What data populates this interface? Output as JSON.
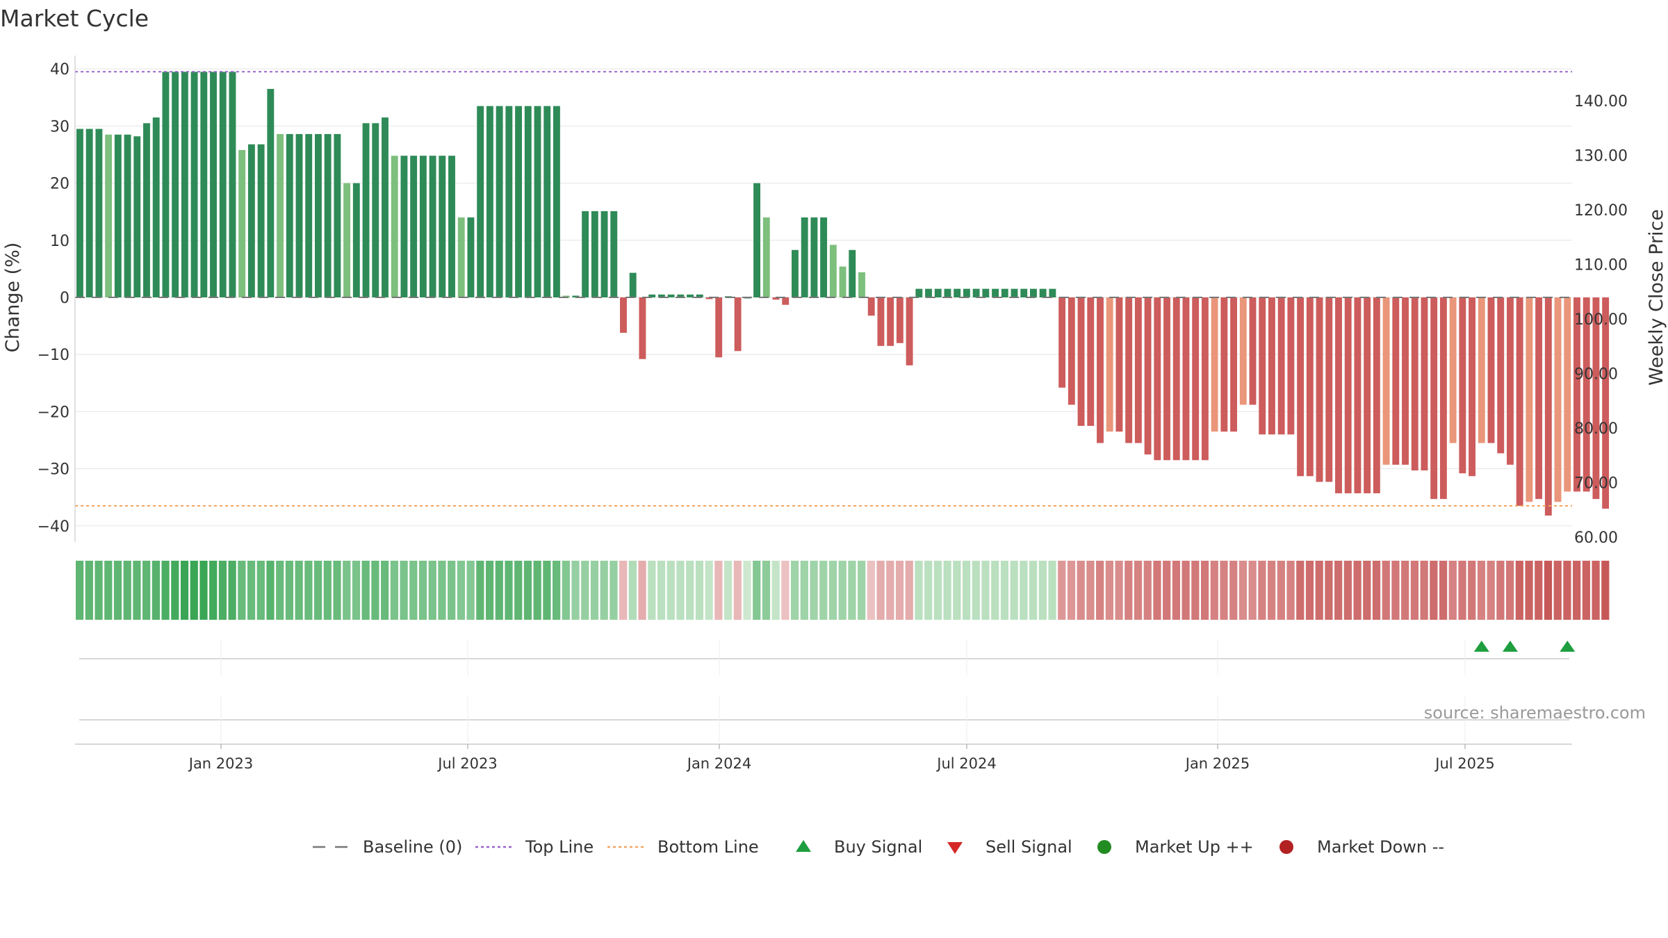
{
  "chart_data": {
    "type": "bar",
    "title": "Market Cycle",
    "ylabel": "Change (%)",
    "y2label": "Weekly Close Price",
    "ylim": [
      -42,
      43
    ],
    "y2lim": [
      60,
      148
    ],
    "yticks": [
      "40",
      "30",
      "20",
      "10",
      "0",
      "−10",
      "−20",
      "−30",
      "−40"
    ],
    "y2ticks": [
      "140.00",
      "130.00",
      "120.00",
      "110.00",
      "100.00",
      "90.00",
      "80.00",
      "70.00",
      "60.00"
    ],
    "top_line": 39.5,
    "bottom_line": -36.5,
    "date_ticks": [
      "Jan 2023",
      "Jul 2023",
      "Jan 2024",
      "Jul 2024",
      "Jan 2025",
      "Jul 2025"
    ],
    "grid": true,
    "legend_placement": "bottom",
    "values": [
      29.5,
      29.5,
      29.5,
      28.5,
      28.5,
      28.5,
      28.2,
      30.5,
      31.5,
      39.5,
      39.5,
      39.5,
      39.5,
      39.5,
      39.5,
      39.5,
      39.5,
      25.8,
      26.8,
      26.8,
      36.5,
      28.6,
      28.6,
      28.6,
      28.6,
      28.6,
      28.6,
      28.6,
      20,
      20,
      30.5,
      30.5,
      31.5,
      24.8,
      24.8,
      24.8,
      24.8,
      24.8,
      24.8,
      24.8,
      14,
      14,
      33.5,
      33.5,
      33.5,
      33.5,
      33.5,
      33.5,
      33.5,
      33.5,
      33.5,
      0.3,
      0.3,
      15.1,
      15.1,
      15.1,
      15.1,
      -6.2,
      4.3,
      -10.8,
      0.5,
      0.5,
      0.5,
      0.5,
      0.5,
      0.5,
      -0.3,
      -10.5,
      0.2,
      -9.4,
      0,
      20,
      14,
      -0.4,
      -1.3,
      8.3,
      14,
      14,
      14,
      9.2,
      5.4,
      8.3,
      4.4,
      -3.2,
      -8.5,
      -8.5,
      -8,
      -11.9,
      1.5,
      1.5,
      1.5,
      1.5,
      1.5,
      1.5,
      1.5,
      1.5,
      1.5,
      1.5,
      1.5,
      1.5,
      1.5,
      1.5,
      1.5,
      -15.8,
      -18.8,
      -22.5,
      -22.5,
      -25.5,
      -23.5,
      -23.5,
      -25.5,
      -25.5,
      -27.5,
      -28.5,
      -28.5,
      -28.5,
      -28.5,
      -28.5,
      -28.5,
      -23.5,
      -23.5,
      -23.5,
      -18.8,
      -18.8,
      -24,
      -24,
      -24,
      -24,
      -31.3,
      -31.3,
      -32.3,
      -32.3,
      -34.3,
      -34.3,
      -34.3,
      -34.3,
      -34.3,
      -29.3,
      -29.3,
      -29.3,
      -30.3,
      -30.3,
      -35.3,
      -35.3,
      -25.5,
      -30.8,
      -31.3,
      -25.5,
      -25.5,
      -27.3,
      -29.3,
      -36.5,
      -35.8,
      -35.3,
      -38.2,
      -35.8,
      -34,
      -34,
      -34,
      -35.3,
      -37
    ],
    "heat_strip": [
      13,
      13,
      13,
      13,
      13,
      13,
      13,
      13,
      14,
      15,
      16,
      17,
      17,
      17,
      16,
      15,
      15,
      12,
      12,
      12,
      14,
      12,
      12,
      12,
      12,
      12,
      12,
      12,
      10,
      10,
      12,
      12,
      12,
      10,
      10,
      10,
      10,
      10,
      10,
      10,
      9,
      9,
      13,
      13,
      13,
      13,
      13,
      13,
      13,
      13,
      12,
      9,
      7,
      7,
      7,
      7,
      7,
      -3,
      4,
      -4,
      3,
      3,
      3,
      3,
      3,
      3,
      2,
      -3,
      2,
      -3,
      1,
      9,
      8,
      2,
      -2,
      6,
      6,
      6,
      6,
      6,
      6,
      6,
      6,
      -2,
      -4,
      -4,
      -4,
      -4,
      3,
      3,
      3,
      3,
      3,
      3,
      3,
      3,
      3,
      3,
      3,
      3,
      3,
      3,
      3,
      -6,
      -6,
      -7,
      -7,
      -8,
      -7,
      -7,
      -8,
      -8,
      -8,
      -9,
      -9,
      -9,
      -9,
      -9,
      -9,
      -8,
      -8,
      -8,
      -7,
      -7,
      -8,
      -8,
      -8,
      -8,
      -10,
      -10,
      -10,
      -10,
      -10,
      -10,
      -10,
      -10,
      -10,
      -9,
      -9,
      -9,
      -9,
      -9,
      -10,
      -10,
      -8,
      -9,
      -9,
      -8,
      -8,
      -9,
      -9,
      -11,
      -11,
      -11,
      -12,
      -11,
      -11,
      -11,
      -11,
      -11,
      -12
    ],
    "buy_signals": [
      147,
      150,
      156
    ],
    "sell_signals": [],
    "colors": {
      "up_dark": "#2e8b57",
      "up_light": "#7dbf7d",
      "down_dark": "#cd5c5c",
      "down_light": "#e9967a",
      "top_line": "#9966cc",
      "bottom_line": "#f4a460",
      "baseline": "#777777",
      "buy": "#1e9e3e",
      "sell": "#d62728",
      "market_up": "#228b22",
      "market_down": "#b22222"
    },
    "legend": [
      {
        "label": "Baseline (0)",
        "marker": "dash",
        "color": "#777777"
      },
      {
        "label": "Top Line",
        "marker": "dot-line",
        "color": "#9966cc"
      },
      {
        "label": "Bottom Line",
        "marker": "dot-line",
        "color": "#f4a460"
      },
      {
        "label": "Buy Signal",
        "marker": "triangle-up",
        "color": "#1e9e3e"
      },
      {
        "label": "Sell Signal",
        "marker": "triangle-down",
        "color": "#d62728"
      },
      {
        "label": "Market Up ++",
        "marker": "circle",
        "color": "#228b22"
      },
      {
        "label": "Market Down --",
        "marker": "circle",
        "color": "#b22222"
      }
    ],
    "source": "source: sharemaestro.com"
  }
}
